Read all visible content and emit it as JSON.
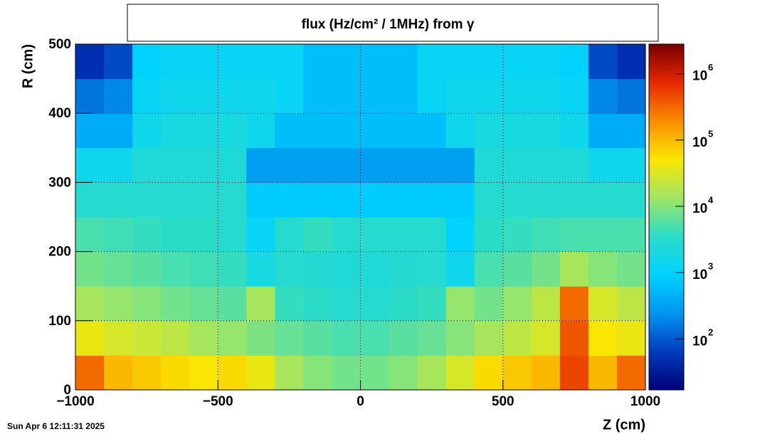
{
  "chart_data": {
    "type": "heatmap",
    "title": "flux (Hz/cm² / 1MHz) from γ",
    "date": "Sun Apr  6 12:11:31 2025",
    "x_label": "Z (cm)",
    "y_label": "R (cm)",
    "xlim": [
      -1000,
      1000
    ],
    "ylim": [
      0,
      500
    ],
    "xticks": [
      {
        "value": -1000,
        "label": "−1000"
      },
      {
        "value": -500,
        "label": "−500"
      },
      0,
      500,
      1000
    ],
    "yticks": [
      0,
      100,
      200,
      300,
      400,
      500
    ],
    "grid": true,
    "zlim": [
      17,
      2800000
    ],
    "zlog": true,
    "zticks": [
      {
        "value": 100,
        "label": "10",
        "power": "2"
      },
      {
        "value": 1000,
        "label": "10",
        "power": "3"
      },
      {
        "value": 10000,
        "label": "10",
        "power": "4"
      },
      {
        "value": 100000,
        "label": "10",
        "power": "5"
      },
      {
        "value": 1000000,
        "label": "10",
        "power": "6"
      }
    ],
    "palette": [
      "#000078",
      "#003cbe",
      "#0096f0",
      "#00d2ff",
      "#2adcc8",
      "#a0e664",
      "#fae600",
      "#fa8c00",
      "#e62800",
      "#780000"
    ],
    "xbins": [
      -1000,
      -900,
      -800,
      -700,
      -600,
      -500,
      -400,
      -300,
      -200,
      -100,
      0,
      100,
      200,
      300,
      400,
      500,
      600,
      700,
      800,
      900,
      1000
    ],
    "ybins": [
      0,
      50,
      100,
      150,
      200,
      250,
      300,
      350,
      400,
      450,
      500
    ],
    "values": [
      [
        300000,
        100000,
        80000,
        60000,
        50000,
        60000,
        40000,
        15000,
        10000,
        8000,
        8000,
        10000,
        15000,
        30000,
        60000,
        80000,
        100000,
        500000,
        100000,
        300000
      ],
      [
        40000,
        30000,
        25000,
        20000,
        15000,
        12000,
        9000,
        7000,
        6000,
        5000,
        5000,
        6000,
        7000,
        10000,
        15000,
        20000,
        30000,
        400000,
        50000,
        40000
      ],
      [
        15000,
        12000,
        10000,
        8000,
        7000,
        6000,
        15000,
        4000,
        3500,
        3000,
        3000,
        3500,
        4000,
        12000,
        8000,
        12000,
        20000,
        300000,
        30000,
        20000
      ],
      [
        8000,
        7000,
        6000,
        5000,
        4500,
        4000,
        2000,
        3000,
        2800,
        2500,
        2500,
        2800,
        3000,
        1500,
        5000,
        6000,
        8000,
        15000,
        10000,
        8000
      ],
      [
        5000,
        4500,
        4000,
        3500,
        3500,
        3000,
        1200,
        3000,
        4000,
        3000,
        3000,
        3000,
        3000,
        1000,
        3500,
        4000,
        4500,
        5000,
        5000,
        5000
      ],
      [
        3000,
        3000,
        3000,
        3000,
        3000,
        3000,
        800,
        800,
        800,
        800,
        800,
        800,
        800,
        800,
        3000,
        3000,
        3000,
        3000,
        3000,
        3000
      ],
      [
        1500,
        1500,
        2500,
        2500,
        2500,
        2500,
        300,
        300,
        300,
        300,
        300,
        300,
        300,
        300,
        2500,
        2500,
        2500,
        2500,
        1500,
        1500
      ],
      [
        400,
        400,
        1500,
        2000,
        2000,
        2000,
        1500,
        600,
        600,
        600,
        600,
        600,
        600,
        1500,
        2000,
        2000,
        2000,
        1500,
        400,
        400
      ],
      [
        150,
        200,
        1200,
        1500,
        1500,
        1500,
        1500,
        1200,
        600,
        600,
        600,
        600,
        1200,
        1500,
        1500,
        1500,
        1500,
        1200,
        200,
        150
      ],
      [
        50,
        80,
        1000,
        1200,
        1200,
        1200,
        1200,
        1200,
        600,
        600,
        600,
        600,
        1200,
        1200,
        1200,
        1200,
        1200,
        1000,
        80,
        50
      ]
    ]
  }
}
